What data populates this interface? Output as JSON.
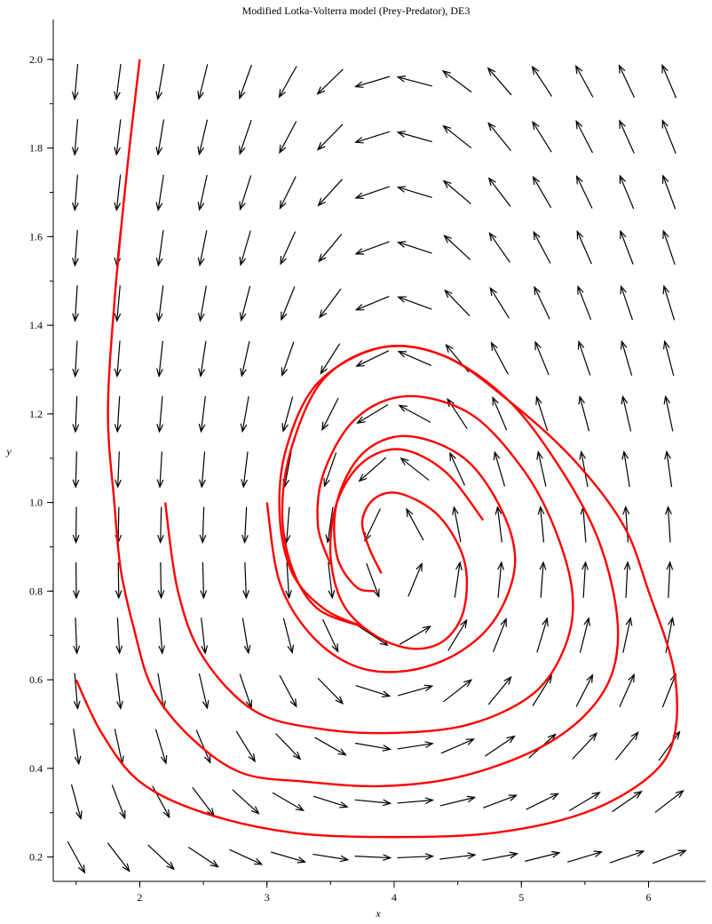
{
  "chart_data": {
    "type": "vector-field-with-trajectories",
    "title": "Modified Lotka-Volterra model (Prey-Predator), DE3",
    "xlabel": "x",
    "ylabel": "y",
    "xlim": [
      1.32,
      6.45
    ],
    "ylim": [
      0.145,
      2.09
    ],
    "x_ticks": [
      2,
      3,
      4,
      5,
      6
    ],
    "y_ticks": [
      0.2,
      0.4,
      0.6,
      0.8,
      1.0,
      1.2,
      1.4,
      1.6,
      1.8,
      2.0
    ],
    "x_tick_labels": [
      "2",
      "3",
      "4",
      "5",
      "6"
    ],
    "y_tick_labels": [
      "0.2",
      "0.4",
      "0.6",
      "0.8",
      "1.0",
      "1.2",
      "1.4",
      "1.6",
      "1.8",
      "2.0"
    ],
    "field": {
      "x_start": 1.5,
      "x_step": 0.333,
      "x_count": 15,
      "y_start": 0.2,
      "y_step": 0.125,
      "y_count": 15,
      "equilibrium": [
        4.0,
        0.875
      ],
      "color": "#000000"
    },
    "trajectories": [
      {
        "color": "#ff0000",
        "points": [
          [
            2.0,
            2.0
          ],
          [
            1.9,
            1.75
          ],
          [
            1.8,
            1.45
          ],
          [
            1.75,
            1.2
          ],
          [
            1.8,
            1.0
          ],
          [
            1.85,
            0.85
          ],
          [
            1.95,
            0.72
          ],
          [
            2.1,
            0.58
          ],
          [
            2.4,
            0.47
          ],
          [
            2.8,
            0.39
          ],
          [
            3.3,
            0.37
          ],
          [
            3.9,
            0.36
          ],
          [
            4.5,
            0.38
          ],
          [
            5.1,
            0.44
          ],
          [
            5.5,
            0.52
          ],
          [
            5.72,
            0.62
          ],
          [
            5.75,
            0.75
          ],
          [
            5.6,
            0.92
          ],
          [
            5.3,
            1.08
          ],
          [
            4.9,
            1.23
          ],
          [
            4.4,
            1.33
          ],
          [
            3.9,
            1.35
          ],
          [
            3.4,
            1.27
          ],
          [
            3.15,
            1.12
          ],
          [
            3.1,
            0.97
          ],
          [
            3.2,
            0.84
          ],
          [
            3.45,
            0.76
          ],
          [
            3.75,
            0.72
          ]
        ]
      },
      {
        "color": "#ff0000",
        "points": [
          [
            1.5,
            0.6
          ],
          [
            1.7,
            0.48
          ],
          [
            2.0,
            0.37
          ],
          [
            2.5,
            0.3
          ],
          [
            3.2,
            0.255
          ],
          [
            4.0,
            0.245
          ],
          [
            4.8,
            0.255
          ],
          [
            5.5,
            0.3
          ],
          [
            6.0,
            0.38
          ],
          [
            6.2,
            0.47
          ],
          [
            6.2,
            0.62
          ],
          [
            6.0,
            0.8
          ],
          [
            5.8,
            0.95
          ],
          [
            5.4,
            1.1
          ],
          [
            4.9,
            1.23
          ],
          [
            4.4,
            1.33
          ],
          [
            3.9,
            1.35
          ],
          [
            3.45,
            1.28
          ],
          [
            3.2,
            1.13
          ],
          [
            3.12,
            0.98
          ],
          [
            3.2,
            0.85
          ],
          [
            3.4,
            0.76
          ],
          [
            3.75,
            0.72
          ]
        ]
      },
      {
        "color": "#ff0000",
        "points": [
          [
            2.2,
            1.0
          ],
          [
            2.3,
            0.8
          ],
          [
            2.5,
            0.65
          ],
          [
            2.9,
            0.53
          ],
          [
            3.4,
            0.49
          ],
          [
            4.0,
            0.48
          ],
          [
            4.6,
            0.5
          ],
          [
            5.1,
            0.57
          ],
          [
            5.35,
            0.68
          ],
          [
            5.4,
            0.8
          ],
          [
            5.25,
            0.95
          ],
          [
            5.0,
            1.08
          ],
          [
            4.6,
            1.2
          ],
          [
            4.1,
            1.24
          ],
          [
            3.7,
            1.19
          ],
          [
            3.45,
            1.07
          ],
          [
            3.4,
            0.95
          ],
          [
            3.5,
            0.86
          ]
        ]
      },
      {
        "color": "#ff0000",
        "points": [
          [
            3.0,
            1.0
          ],
          [
            3.1,
            0.82
          ],
          [
            3.35,
            0.7
          ],
          [
            3.7,
            0.63
          ],
          [
            4.1,
            0.62
          ],
          [
            4.5,
            0.66
          ],
          [
            4.8,
            0.74
          ],
          [
            4.95,
            0.86
          ],
          [
            4.85,
            0.98
          ],
          [
            4.55,
            1.1
          ],
          [
            4.1,
            1.15
          ],
          [
            3.75,
            1.11
          ],
          [
            3.55,
            1.0
          ],
          [
            3.55,
            0.88
          ],
          [
            3.7,
            0.81
          ],
          [
            3.85,
            0.8
          ]
        ]
      },
      {
        "color": "#ff0000",
        "points": [
          [
            3.9,
            0.84
          ],
          [
            3.8,
            0.9
          ],
          [
            3.75,
            0.96
          ],
          [
            3.85,
            1.01
          ],
          [
            4.05,
            1.02
          ],
          [
            4.35,
            0.97
          ],
          [
            4.55,
            0.87
          ],
          [
            4.55,
            0.76
          ],
          [
            4.4,
            0.69
          ],
          [
            4.15,
            0.67
          ],
          [
            3.85,
            0.7
          ],
          [
            3.6,
            0.77
          ],
          [
            3.5,
            0.88
          ],
          [
            3.55,
            1.0
          ],
          [
            3.75,
            1.09
          ],
          [
            4.05,
            1.12
          ],
          [
            4.4,
            1.07
          ],
          [
            4.7,
            0.96
          ]
        ]
      }
    ]
  }
}
